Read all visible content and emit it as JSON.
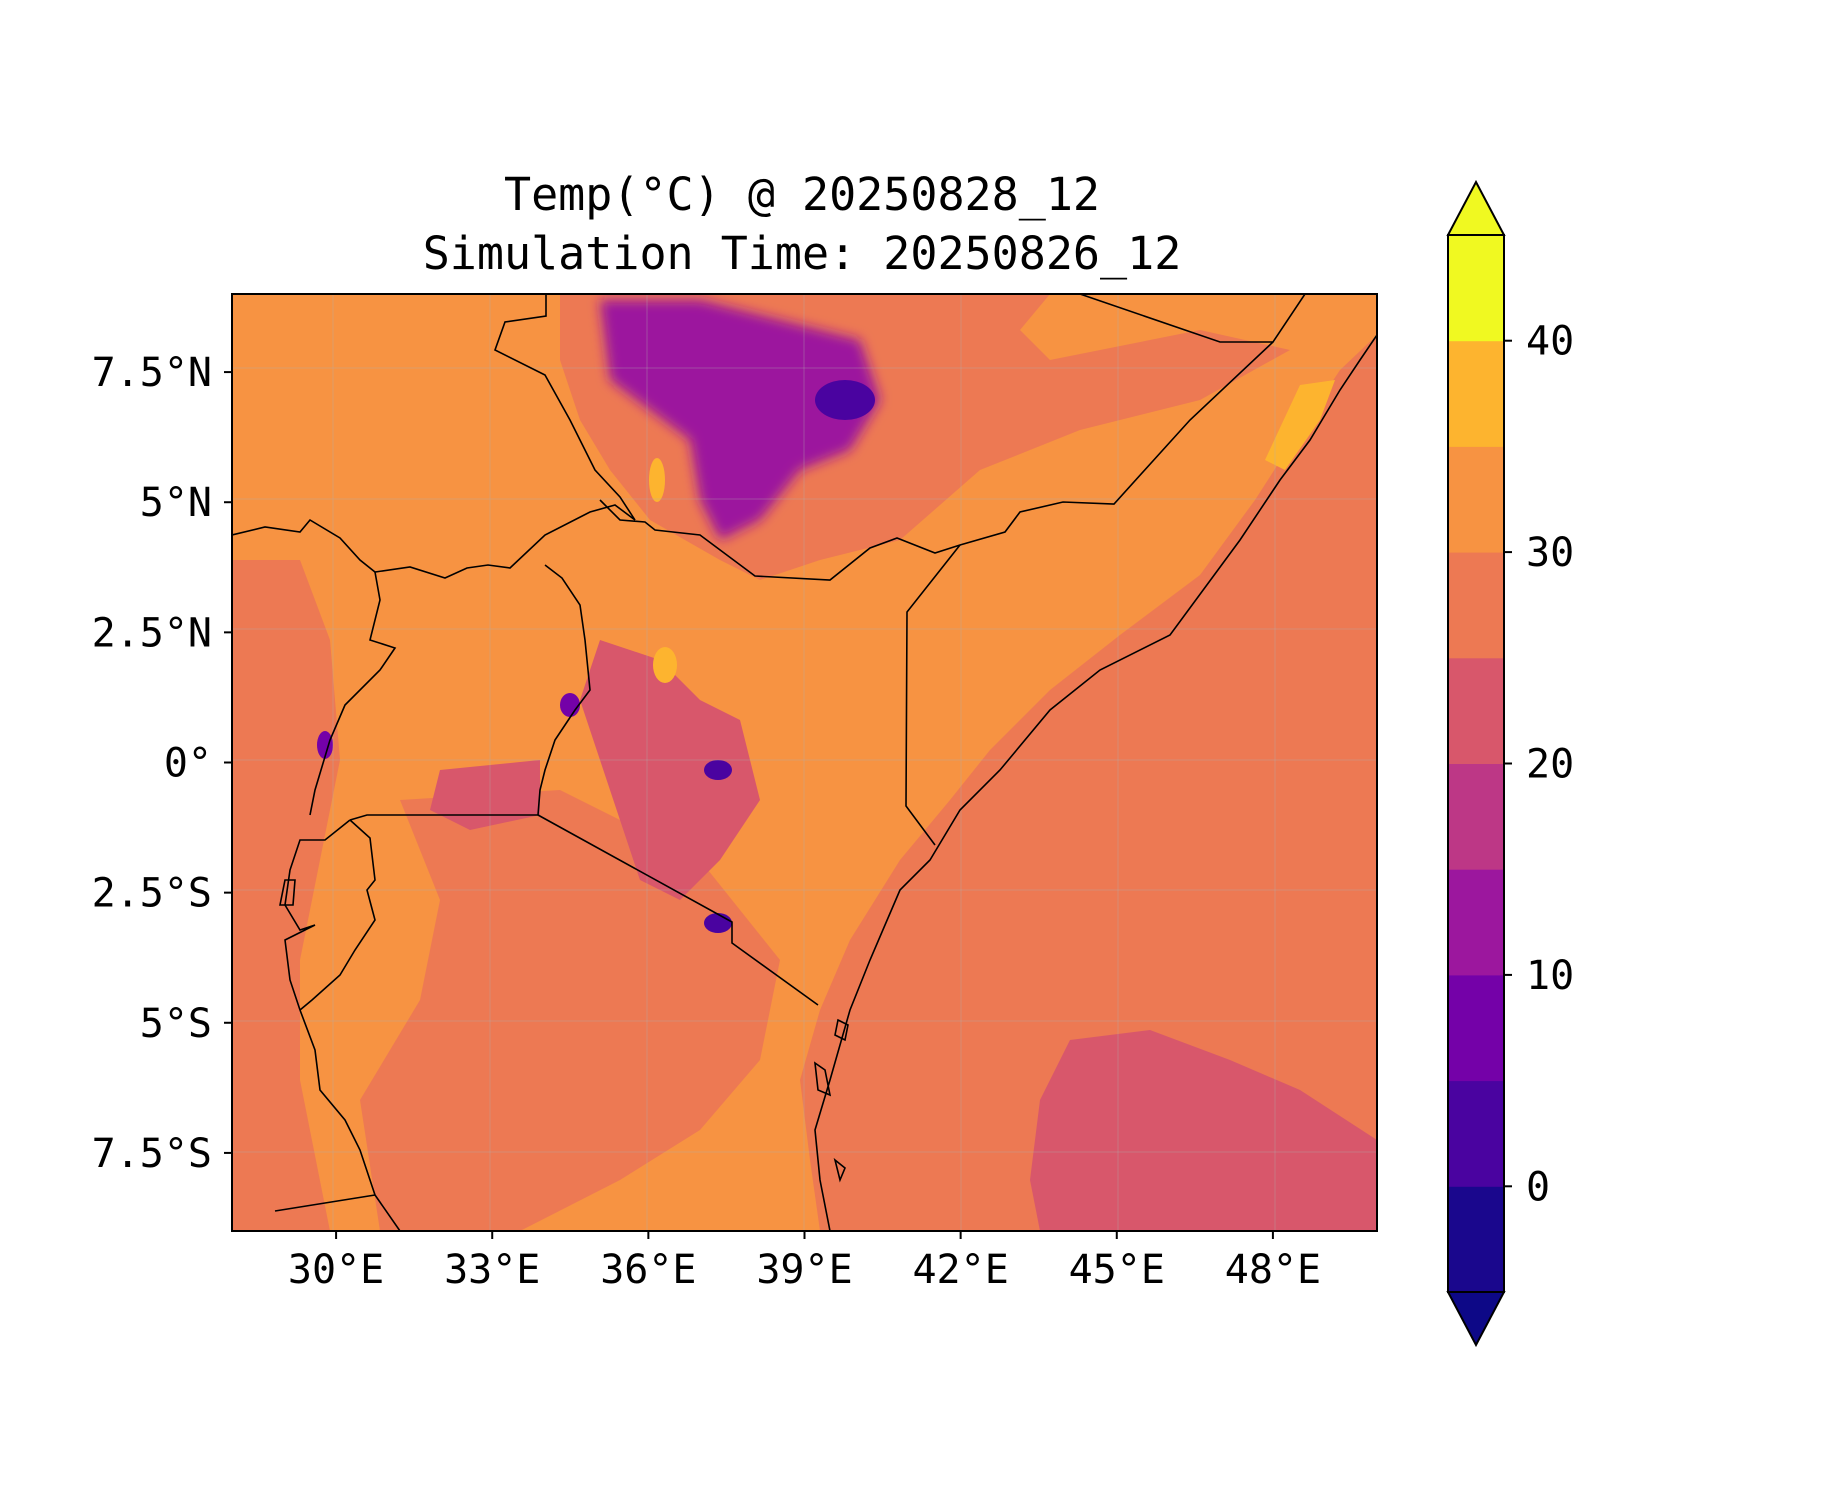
{
  "figure": {
    "title_line1": "Temp(°C) @ 20250828_12",
    "title_line2": "Simulation Time: 20250826_12"
  },
  "map": {
    "region": "East Africa",
    "lon_range": [
      28,
      50
    ],
    "lat_range": [
      -9,
      9
    ],
    "x_ticks": [
      {
        "value": 30,
        "label": "30°E"
      },
      {
        "value": 33,
        "label": "33°E"
      },
      {
        "value": 36,
        "label": "36°E"
      },
      {
        "value": 39,
        "label": "39°E"
      },
      {
        "value": 42,
        "label": "42°E"
      },
      {
        "value": 45,
        "label": "45°E"
      },
      {
        "value": 48,
        "label": "48°E"
      }
    ],
    "y_ticks": [
      {
        "value": 7.5,
        "label": "7.5°N"
      },
      {
        "value": 5,
        "label": "5°N"
      },
      {
        "value": 2.5,
        "label": "2.5°N"
      },
      {
        "value": 0,
        "label": "0°"
      },
      {
        "value": -2.5,
        "label": "2.5°S"
      },
      {
        "value": -5,
        "label": "5°S"
      },
      {
        "value": -7.5,
        "label": "7.5°S"
      }
    ],
    "grid": true,
    "colormap": "plasma"
  },
  "colorbar": {
    "levels": [
      -5,
      0,
      5,
      10,
      15,
      20,
      25,
      30,
      35,
      40,
      45
    ],
    "colors": [
      "#1a078d",
      "#4a03a0",
      "#7401a8",
      "#9c179e",
      "#bd3786",
      "#d8576b",
      "#ed7953",
      "#f79342",
      "#fdb42f",
      "#f0f921"
    ],
    "extend_low_color": "#0d0887",
    "extend_high_color": "#f0f921",
    "ticks": [
      {
        "value": 0,
        "label": "0"
      },
      {
        "value": 10,
        "label": "10"
      },
      {
        "value": 20,
        "label": "20"
      },
      {
        "value": 30,
        "label": "30"
      },
      {
        "value": 40,
        "label": "40"
      }
    ],
    "extend": "both"
  }
}
